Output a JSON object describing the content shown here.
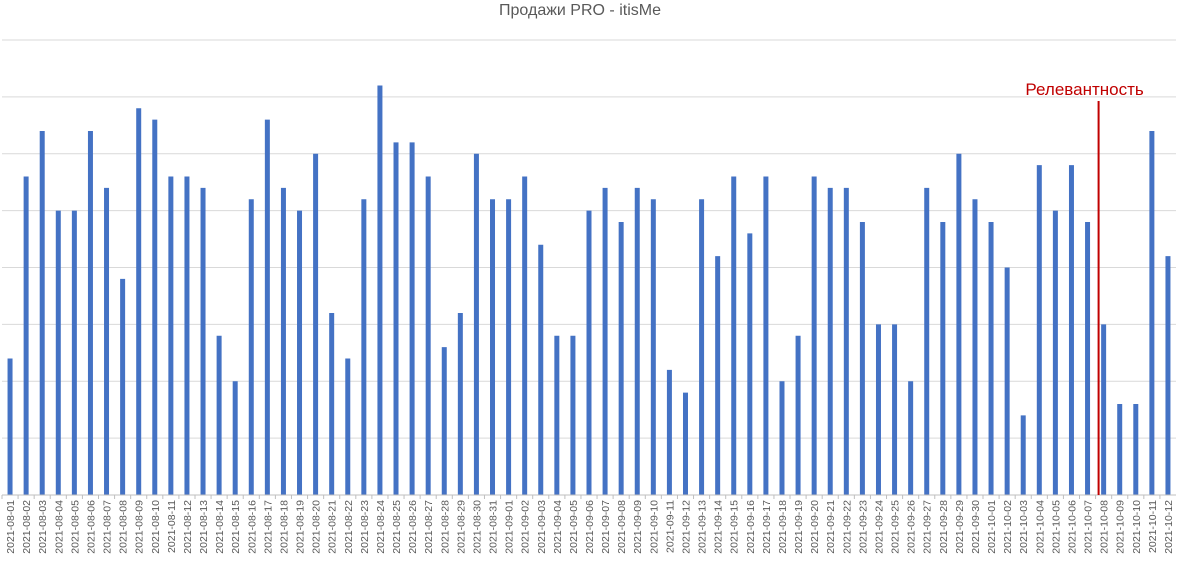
{
  "chart_data": {
    "type": "bar",
    "title": "Продажи PRO - itisMe",
    "xlabel": "",
    "ylabel": "",
    "ylim": [
      0,
      8
    ],
    "grid": true,
    "legend": "none",
    "bar_color": "#4472C4",
    "grid_color": "#d9d9d9",
    "axis_color": "#bfbfbf",
    "categories": [
      "2021-08-01",
      "2021-08-02",
      "2021-08-03",
      "2021-08-04",
      "2021-08-05",
      "2021-08-06",
      "2021-08-07",
      "2021-08-08",
      "2021-08-09",
      "2021-08-10",
      "2021-08-11",
      "2021-08-12",
      "2021-08-13",
      "2021-08-14",
      "2021-08-15",
      "2021-08-16",
      "2021-08-17",
      "2021-08-18",
      "2021-08-19",
      "2021-08-20",
      "2021-08-21",
      "2021-08-22",
      "2021-08-23",
      "2021-08-24",
      "2021-08-25",
      "2021-08-26",
      "2021-08-27",
      "2021-08-28",
      "2021-08-29",
      "2021-08-30",
      "2021-08-31",
      "2021-09-01",
      "2021-09-02",
      "2021-09-03",
      "2021-09-04",
      "2021-09-05",
      "2021-09-06",
      "2021-09-07",
      "2021-09-08",
      "2021-09-09",
      "2021-09-10",
      "2021-09-11",
      "2021-09-12",
      "2021-09-13",
      "2021-09-14",
      "2021-09-15",
      "2021-09-16",
      "2021-09-17",
      "2021-09-18",
      "2021-09-19",
      "2021-09-20",
      "2021-09-21",
      "2021-09-22",
      "2021-09-23",
      "2021-09-24",
      "2021-09-25",
      "2021-09-26",
      "2021-09-27",
      "2021-09-28",
      "2021-09-29",
      "2021-09-30",
      "2021-10-01",
      "2021-10-02",
      "2021-10-03",
      "2021-10-04",
      "2021-10-05",
      "2021-10-06",
      "2021-10-07",
      "2021-10-08",
      "2021-10-09",
      "2021-10-10",
      "2021-10-11",
      "2021-10-12"
    ],
    "values": [
      2.4,
      5.6,
      6.4,
      5.0,
      5.0,
      6.4,
      5.4,
      3.8,
      6.8,
      6.6,
      5.6,
      5.6,
      5.4,
      2.8,
      2.0,
      5.2,
      6.6,
      5.4,
      5.0,
      6.0,
      3.2,
      2.4,
      5.2,
      7.2,
      6.2,
      6.2,
      5.6,
      2.6,
      3.2,
      6.0,
      5.2,
      5.2,
      5.6,
      4.4,
      2.8,
      2.8,
      5.0,
      5.4,
      4.8,
      5.4,
      5.2,
      2.2,
      1.8,
      5.2,
      4.2,
      5.6,
      4.6,
      5.6,
      2.0,
      2.8,
      5.6,
      5.4,
      5.4,
      4.8,
      3.0,
      3.0,
      2.0,
      5.4,
      4.8,
      6.0,
      5.2,
      4.8,
      4.0,
      1.4,
      5.8,
      5.0,
      5.8,
      4.8,
      3.0,
      1.6,
      1.6,
      6.4,
      4.2
    ],
    "annotations": [
      {
        "type": "vertical-line",
        "between": [
          "2021-10-07",
          "2021-10-08"
        ],
        "label": "Релевантность",
        "color": "#C00000"
      }
    ]
  }
}
